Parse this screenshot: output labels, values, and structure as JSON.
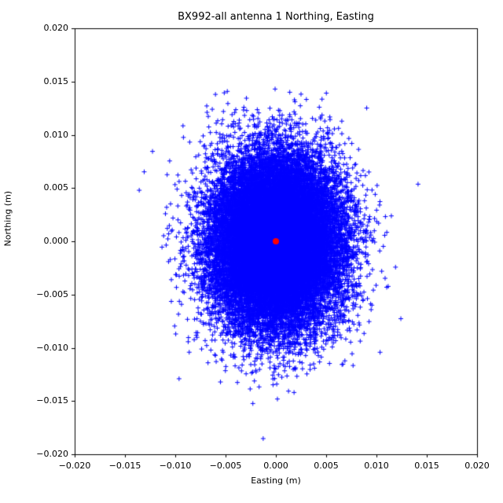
{
  "chart_data": {
    "type": "scatter",
    "title": "BX992-all antenna 1 Northing, Easting",
    "xlabel": "Easting (m)",
    "ylabel": "Northing (m)",
    "xlim": [
      -0.02,
      0.02
    ],
    "ylim": [
      -0.02,
      0.02
    ],
    "xticks": [
      -0.02,
      -0.015,
      -0.01,
      -0.005,
      0,
      0.005,
      0.01,
      0.015,
      0.02
    ],
    "yticks": [
      -0.02,
      -0.015,
      -0.01,
      -0.005,
      0,
      0.005,
      0.01,
      0.015,
      0.02
    ],
    "xtick_labels": [
      "−0.020",
      "−0.015",
      "−0.010",
      "−0.005",
      "0.000",
      "0.005",
      "0.010",
      "0.015",
      "0.020"
    ],
    "ytick_labels": [
      "−0.020",
      "−0.015",
      "−0.010",
      "−0.005",
      "0.000",
      "0.005",
      "0.010",
      "0.015",
      "0.020"
    ],
    "grid": false,
    "legend": "none",
    "axes_color": "#000000",
    "series": [
      {
        "name": "antenna-position-scatter",
        "marker": "plus",
        "color": "#0000ff",
        "marker_half_size_px": 3,
        "distribution": {
          "kind": "bivariate-normal",
          "mean": [
            0.0,
            0.0
          ],
          "std": [
            0.0032,
            0.004
          ],
          "n": 26000,
          "seed": 42,
          "x_extent": [
            -0.013,
            0.0125
          ],
          "y_extent": [
            -0.0175,
            0.016
          ]
        }
      },
      {
        "name": "mean-position-point",
        "marker": "circle",
        "color": "#ff0000",
        "marker_radius_px": 4,
        "points": [
          [
            0.0,
            0.0
          ]
        ]
      }
    ]
  }
}
